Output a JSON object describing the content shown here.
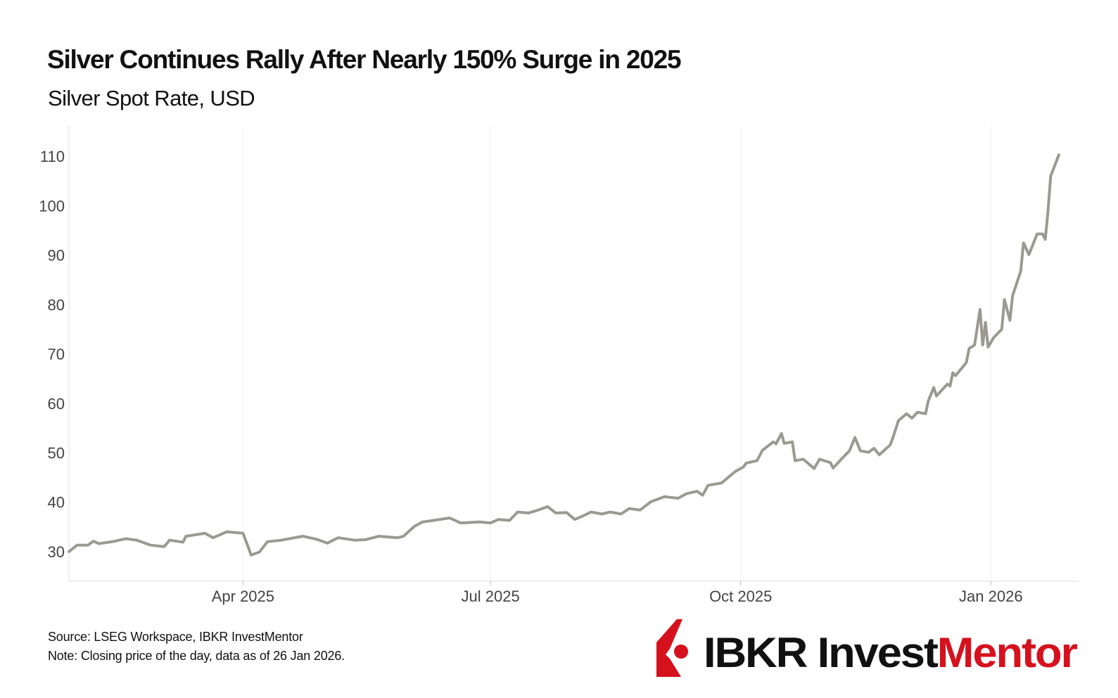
{
  "title": "Silver Continues Rally After Nearly 150% Surge in 2025",
  "subtitle": "Silver Spot Rate, USD",
  "footer": {
    "source": "Source: LSEG Workspace, IBKR InvestMentor",
    "note": "Note: Closing price of the day, data as of 26 Jan 2026."
  },
  "logo": {
    "text_dark": "IBKR Invest",
    "text_red": "Mentor",
    "brand_red": "#d6111e"
  },
  "chart_data": {
    "type": "line",
    "title": "Silver Continues Rally After Nearly 150% Surge in 2025",
    "subtitle": "Silver Spot Rate, USD",
    "xlabel": "",
    "ylabel": "",
    "xlim": [
      "2025-01-27",
      "2026-02-02"
    ],
    "ylim": [
      24,
      116.3
    ],
    "yticks": [
      30,
      40,
      50,
      60,
      70,
      80,
      90,
      100,
      110
    ],
    "xticks": [
      {
        "date": "2025-04-01",
        "label": "Apr 2025"
      },
      {
        "date": "2025-07-01",
        "label": "Jul 2025"
      },
      {
        "date": "2025-10-01",
        "label": "Oct 2025"
      },
      {
        "date": "2026-01-01",
        "label": "Jan 2026"
      }
    ],
    "grid": "vertical",
    "line_color": "#9a9a92",
    "series": [
      {
        "points": [
          [
            "2025-01-27",
            30.0
          ],
          [
            "2025-01-30",
            31.3
          ],
          [
            "2025-02-03",
            31.3
          ],
          [
            "2025-02-05",
            32.1
          ],
          [
            "2025-02-07",
            31.6
          ],
          [
            "2025-02-12",
            32.0
          ],
          [
            "2025-02-17",
            32.6
          ],
          [
            "2025-02-21",
            32.3
          ],
          [
            "2025-02-26",
            31.3
          ],
          [
            "2025-03-03",
            31.0
          ],
          [
            "2025-03-05",
            32.3
          ],
          [
            "2025-03-10",
            31.9
          ],
          [
            "2025-03-11",
            33.1
          ],
          [
            "2025-03-18",
            33.7
          ],
          [
            "2025-03-21",
            32.8
          ],
          [
            "2025-03-26",
            34.0
          ],
          [
            "2025-04-01",
            33.7
          ],
          [
            "2025-04-04",
            29.3
          ],
          [
            "2025-04-07",
            29.9
          ],
          [
            "2025-04-10",
            32.0
          ],
          [
            "2025-04-15",
            32.3
          ],
          [
            "2025-04-23",
            33.1
          ],
          [
            "2025-04-28",
            32.5
          ],
          [
            "2025-05-02",
            31.7
          ],
          [
            "2025-05-06",
            32.8
          ],
          [
            "2025-05-12",
            32.3
          ],
          [
            "2025-05-16",
            32.4
          ],
          [
            "2025-05-21",
            33.1
          ],
          [
            "2025-05-28",
            32.8
          ],
          [
            "2025-05-30",
            33.1
          ],
          [
            "2025-06-03",
            35.1
          ],
          [
            "2025-06-06",
            36.0
          ],
          [
            "2025-06-10",
            36.3
          ],
          [
            "2025-06-16",
            36.8
          ],
          [
            "2025-06-20",
            35.8
          ],
          [
            "2025-06-27",
            36.0
          ],
          [
            "2025-07-01",
            35.8
          ],
          [
            "2025-07-04",
            36.5
          ],
          [
            "2025-07-08",
            36.3
          ],
          [
            "2025-07-11",
            38.0
          ],
          [
            "2025-07-15",
            37.8
          ],
          [
            "2025-07-18",
            38.3
          ],
          [
            "2025-07-22",
            39.1
          ],
          [
            "2025-07-25",
            37.8
          ],
          [
            "2025-07-29",
            37.9
          ],
          [
            "2025-08-01",
            36.5
          ],
          [
            "2025-08-04",
            37.2
          ],
          [
            "2025-08-07",
            38.0
          ],
          [
            "2025-08-11",
            37.6
          ],
          [
            "2025-08-14",
            38.0
          ],
          [
            "2025-08-18",
            37.6
          ],
          [
            "2025-08-21",
            38.7
          ],
          [
            "2025-08-25",
            38.4
          ],
          [
            "2025-08-29",
            40.1
          ],
          [
            "2025-09-03",
            41.1
          ],
          [
            "2025-09-08",
            40.8
          ],
          [
            "2025-09-11",
            41.7
          ],
          [
            "2025-09-15",
            42.2
          ],
          [
            "2025-09-17",
            41.4
          ],
          [
            "2025-09-19",
            43.4
          ],
          [
            "2025-09-24",
            43.9
          ],
          [
            "2025-09-29",
            46.2
          ],
          [
            "2025-10-02",
            47.1
          ],
          [
            "2025-10-03",
            47.9
          ],
          [
            "2025-10-07",
            48.4
          ],
          [
            "2025-10-09",
            50.5
          ],
          [
            "2025-10-13",
            52.2
          ],
          [
            "2025-10-14",
            51.8
          ],
          [
            "2025-10-16",
            53.9
          ],
          [
            "2025-10-17",
            51.9
          ],
          [
            "2025-10-20",
            52.2
          ],
          [
            "2025-10-21",
            48.4
          ],
          [
            "2025-10-24",
            48.7
          ],
          [
            "2025-10-28",
            46.8
          ],
          [
            "2025-10-30",
            48.7
          ],
          [
            "2025-11-03",
            48.0
          ],
          [
            "2025-11-04",
            46.9
          ],
          [
            "2025-11-07",
            48.7
          ],
          [
            "2025-11-10",
            50.4
          ],
          [
            "2025-11-12",
            53.1
          ],
          [
            "2025-11-14",
            50.4
          ],
          [
            "2025-11-17",
            50.1
          ],
          [
            "2025-11-19",
            50.9
          ],
          [
            "2025-11-21",
            49.6
          ],
          [
            "2025-11-25",
            51.6
          ],
          [
            "2025-11-26",
            53.1
          ],
          [
            "2025-11-28",
            56.5
          ],
          [
            "2025-12-01",
            57.9
          ],
          [
            "2025-12-03",
            57.0
          ],
          [
            "2025-12-05",
            58.2
          ],
          [
            "2025-12-08",
            57.9
          ],
          [
            "2025-12-09",
            60.5
          ],
          [
            "2025-12-11",
            63.2
          ],
          [
            "2025-12-12",
            61.5
          ],
          [
            "2025-12-16",
            63.9
          ],
          [
            "2025-12-17",
            63.5
          ],
          [
            "2025-12-18",
            66.2
          ],
          [
            "2025-12-19",
            65.6
          ],
          [
            "2025-12-22",
            67.6
          ],
          [
            "2025-12-23",
            68.3
          ],
          [
            "2025-12-24",
            71.1
          ],
          [
            "2025-12-26",
            71.8
          ],
          [
            "2025-12-28",
            79.0
          ],
          [
            "2025-12-29",
            71.8
          ],
          [
            "2025-12-30",
            76.4
          ],
          [
            "2025-12-31",
            71.4
          ],
          [
            "2026-01-02",
            73.3
          ],
          [
            "2026-01-05",
            75.0
          ],
          [
            "2026-01-06",
            81.0
          ],
          [
            "2026-01-08",
            76.8
          ],
          [
            "2026-01-09",
            81.8
          ],
          [
            "2026-01-12",
            86.8
          ],
          [
            "2026-01-13",
            92.5
          ],
          [
            "2026-01-15",
            90.1
          ],
          [
            "2026-01-18",
            94.3
          ],
          [
            "2026-01-20",
            94.3
          ],
          [
            "2026-01-21",
            93.2
          ],
          [
            "2026-01-22",
            98.9
          ],
          [
            "2026-01-23",
            106.0
          ],
          [
            "2026-01-26",
            110.3
          ]
        ]
      }
    ]
  }
}
